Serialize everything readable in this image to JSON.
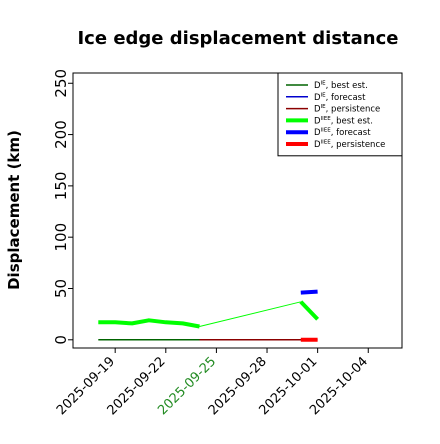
{
  "chart_data": {
    "type": "line",
    "title": "Ice edge displacement distance",
    "xlabel": "",
    "ylabel": "Displacement (km)",
    "x_axis": {
      "type": "date",
      "range": [
        "2025-09-16T12:00",
        "2025-10-06"
      ],
      "ticks": [
        "2025-09-19",
        "2025-09-22",
        "2025-09-25",
        "2025-09-28",
        "2025-10-01",
        "2025-10-04"
      ],
      "highlighted_tick": "2025-09-25",
      "highlight_color": "#228b22"
    },
    "ylim": [
      -8,
      260
    ],
    "yticks": [
      0,
      50,
      100,
      150,
      200,
      250
    ],
    "grid": false,
    "legend_position": "top-right",
    "legend": [
      {
        "label": "D",
        "sup": "IE",
        "suffix": ", best est.",
        "color": "#006400",
        "width": 1.5
      },
      {
        "label": "D",
        "sup": "IE",
        "suffix": ", forecast",
        "color": "#0000cd",
        "width": 1.5
      },
      {
        "label": "D",
        "sup": "IE",
        "suffix": ", persistence",
        "color": "#8b0000",
        "width": 1.5
      },
      {
        "label": "D",
        "sup": "IIEE",
        "suffix": ", best est.",
        "color": "#00ff00",
        "width": 4
      },
      {
        "label": "D",
        "sup": "IIEE",
        "suffix": ", forecast",
        "color": "#0000ff",
        "width": 4
      },
      {
        "label": "D",
        "sup": "IIEE",
        "suffix": ", persistence",
        "color": "#ff0000",
        "width": 4
      }
    ],
    "series": [
      {
        "color": "#006400",
        "width": 1.5,
        "points": [
          [
            "2025-09-18",
            0
          ],
          [
            "2025-09-24",
            0
          ]
        ]
      },
      {
        "color": "#8b0000",
        "width": 1.5,
        "points": [
          [
            "2025-09-24",
            0
          ],
          [
            "2025-10-01",
            0
          ]
        ]
      },
      {
        "color": "#00ff00",
        "width": 1,
        "points": [
          [
            "2025-09-24",
            13
          ],
          [
            "2025-09-30",
            37
          ]
        ]
      },
      {
        "color": "#00ff00",
        "width": 4,
        "points": [
          [
            "2025-09-18",
            17
          ],
          [
            "2025-09-19",
            17
          ],
          [
            "2025-09-20",
            16
          ],
          [
            "2025-09-21",
            19
          ],
          [
            "2025-09-22",
            17
          ],
          [
            "2025-09-23",
            16
          ],
          [
            "2025-09-24",
            13
          ]
        ]
      },
      {
        "color": "#00ff00",
        "width": 4,
        "points": [
          [
            "2025-09-30",
            37
          ],
          [
            "2025-10-01",
            20
          ]
        ]
      },
      {
        "color": "#0000ff",
        "width": 4,
        "points": [
          [
            "2025-09-30",
            46
          ],
          [
            "2025-10-01",
            47
          ]
        ]
      },
      {
        "color": "#ff0000",
        "width": 4,
        "points": [
          [
            "2025-09-30",
            0
          ],
          [
            "2025-10-01",
            0
          ]
        ]
      }
    ]
  }
}
